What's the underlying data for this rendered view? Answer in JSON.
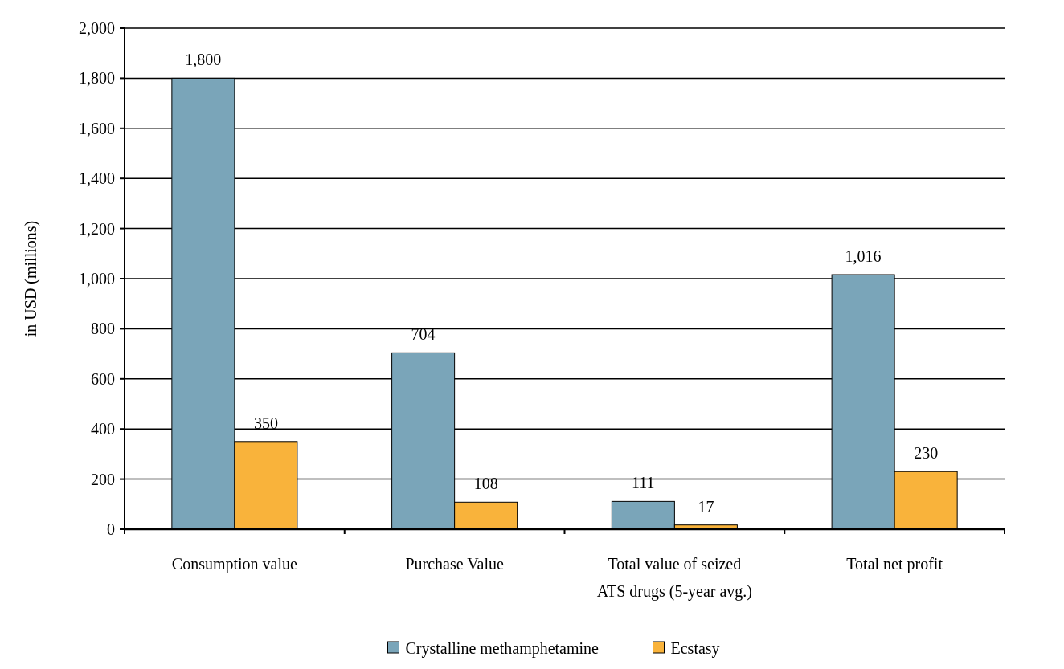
{
  "chart_data": {
    "type": "bar",
    "ylabel": "in USD (millions)",
    "categories": [
      "Consumption value",
      "Purchase Value",
      "Total value of seized ATS drugs (5-year avg.)",
      "Total net profit"
    ],
    "series": [
      {
        "name": "Crystalline methamphetamine",
        "color": "#7aa5b9",
        "values": [
          1800,
          704,
          111,
          1016
        ],
        "value_labels": [
          "1,800",
          "704",
          "111",
          "1,016"
        ]
      },
      {
        "name": "Ecstasy",
        "color": "#f9b33b",
        "values": [
          350,
          108,
          17,
          230
        ],
        "value_labels": [
          "350",
          "108",
          "17",
          "230"
        ]
      }
    ],
    "ylim": [
      0,
      2000
    ],
    "yticks": [
      {
        "value": 0,
        "label": "0"
      },
      {
        "value": 200,
        "label": "200"
      },
      {
        "value": 400,
        "label": "400"
      },
      {
        "value": 600,
        "label": "600"
      },
      {
        "value": 800,
        "label": "800"
      },
      {
        "value": 1000,
        "label": "1,000"
      },
      {
        "value": 1200,
        "label": "1,200"
      },
      {
        "value": 1400,
        "label": "1,400"
      },
      {
        "value": 1600,
        "label": "1,600"
      },
      {
        "value": 1800,
        "label": "1,800"
      },
      {
        "value": 2000,
        "label": "2,000"
      }
    ],
    "grid": "y",
    "legend": "bottom"
  }
}
